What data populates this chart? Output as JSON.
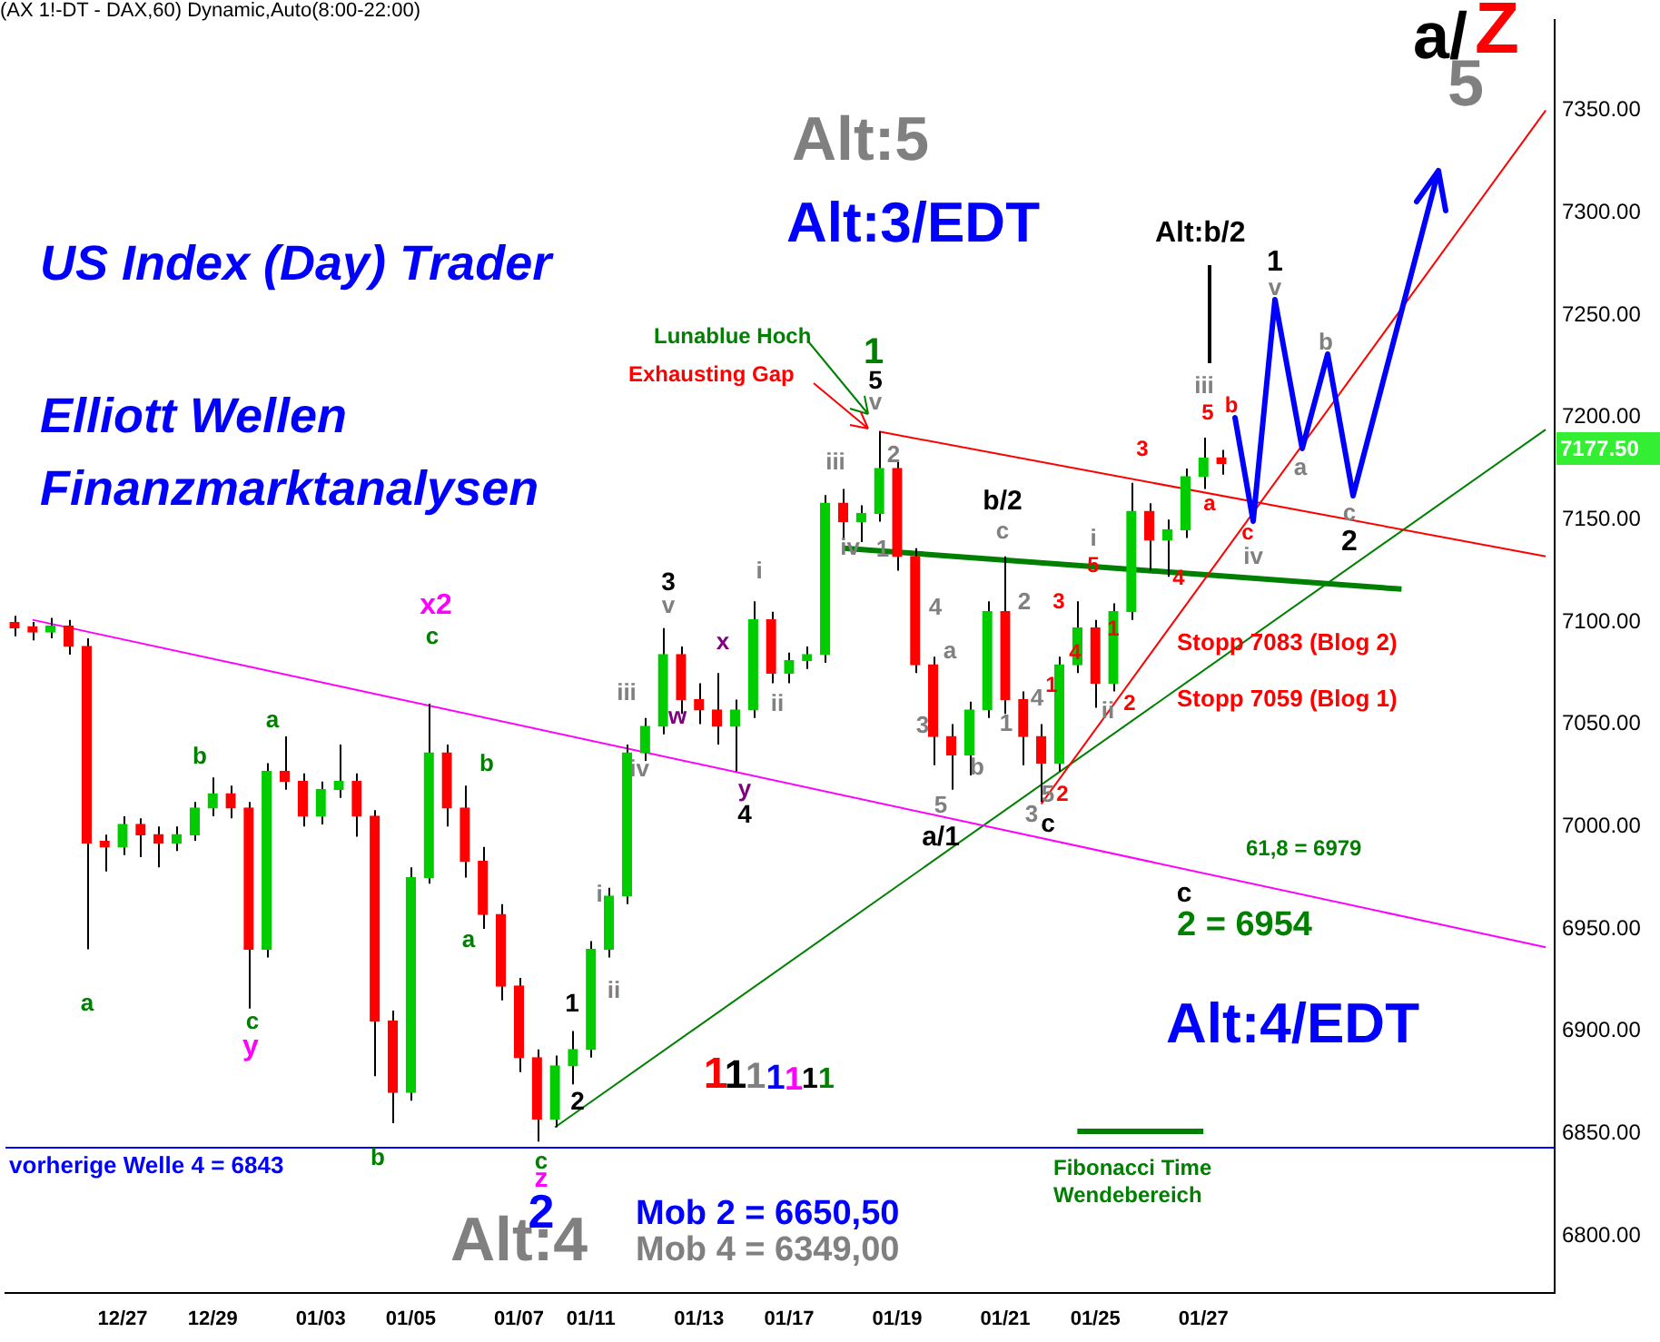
{
  "chart_data": {
    "type": "candlestick",
    "title": "(AX 1!-DT - DAX,60) Dynamic,Auto(8:00-22:00)",
    "categories": [
      null,
      null,
      null,
      null,
      null,
      null,
      "12/27",
      null,
      null,
      null,
      null,
      "12/29",
      null,
      null,
      null,
      null,
      null,
      "01/03",
      null,
      null,
      null,
      null,
      "01/05",
      null,
      null,
      null,
      null,
      null,
      "01/07",
      null,
      null,
      null,
      "01/11",
      null,
      null,
      null,
      null,
      null,
      "01/13",
      null,
      null,
      null,
      null,
      "01/17",
      null,
      null,
      null,
      null,
      null,
      "01/19",
      null,
      null,
      null,
      null,
      null,
      "01/21",
      null,
      null,
      null,
      null,
      "01/25",
      null,
      null,
      null,
      null,
      null,
      "01/27",
      null,
      null,
      null,
      null,
      null,
      null,
      null,
      null,
      null,
      null,
      null,
      null,
      null,
      null,
      null,
      null,
      null,
      null,
      null
    ],
    "ohlc": [
      [
        7099,
        7103,
        7093,
        7097
      ],
      [
        7097,
        7100,
        7091,
        7095
      ],
      [
        7095,
        7102,
        7092,
        7098
      ],
      [
        7098,
        7101,
        7084,
        7088
      ],
      [
        7088,
        7092,
        6940,
        6992
      ],
      [
        6992,
        6996,
        6978,
        6990
      ],
      [
        6990,
        7005,
        6986,
        7001
      ],
      [
        7001,
        7004,
        6985,
        6996
      ],
      [
        6996,
        7000,
        6980,
        6992
      ],
      [
        6992,
        7000,
        6988,
        6996
      ],
      [
        6996,
        7012,
        6993,
        7009
      ],
      [
        7009,
        7024,
        7005,
        7016
      ],
      [
        7016,
        7020,
        7004,
        7009
      ],
      [
        7009,
        7012,
        6911,
        6940
      ],
      [
        6940,
        7031,
        6936,
        7027
      ],
      [
        7027,
        7044,
        7018,
        7022
      ],
      [
        7022,
        7026,
        7000,
        7005
      ],
      [
        7005,
        7022,
        7001,
        7018
      ],
      [
        7018,
        7040,
        7014,
        7022
      ],
      [
        7022,
        7026,
        6995,
        7005
      ],
      [
        7005,
        7008,
        6878,
        6905
      ],
      [
        6905,
        6910,
        6855,
        6870
      ],
      [
        6870,
        6980,
        6866,
        6975
      ],
      [
        6975,
        7060,
        6972,
        7036
      ],
      [
        7036,
        7040,
        7000,
        7009
      ],
      [
        7009,
        7020,
        6975,
        6983
      ],
      [
        6983,
        6990,
        6950,
        6957
      ],
      [
        6957,
        6962,
        6915,
        6922
      ],
      [
        6922,
        6926,
        6880,
        6887
      ],
      [
        6887,
        6891,
        6846,
        6857
      ],
      [
        6857,
        6888,
        6853,
        6883
      ],
      [
        6883,
        6900,
        6874,
        6891
      ],
      [
        6891,
        6944,
        6887,
        6940
      ],
      [
        6940,
        6970,
        6936,
        6966
      ],
      [
        6966,
        7040,
        6962,
        7036
      ],
      [
        7036,
        7053,
        7032,
        7049
      ],
      [
        7049,
        7097,
        7045,
        7084
      ],
      [
        7084,
        7088,
        7055,
        7062
      ],
      [
        7062,
        7070,
        7050,
        7057
      ],
      [
        7057,
        7075,
        7040,
        7049
      ],
      [
        7049,
        7062,
        7027,
        7057
      ],
      [
        7057,
        7110,
        7053,
        7101
      ],
      [
        7101,
        7105,
        7070,
        7075
      ],
      [
        7075,
        7085,
        7070,
        7081
      ],
      [
        7081,
        7088,
        7077,
        7084
      ],
      [
        7084,
        7162,
        7080,
        7158
      ],
      [
        7158,
        7165,
        7140,
        7149
      ],
      [
        7149,
        7157,
        7139,
        7153
      ],
      [
        7153,
        7193,
        7149,
        7175
      ],
      [
        7175,
        7179,
        7125,
        7132
      ],
      [
        7132,
        7136,
        7075,
        7079
      ],
      [
        7079,
        7083,
        7030,
        7044
      ],
      [
        7044,
        7050,
        7018,
        7035
      ],
      [
        7035,
        7061,
        7025,
        7057
      ],
      [
        7057,
        7110,
        7053,
        7105
      ],
      [
        7105,
        7132,
        7055,
        7062
      ],
      [
        7062,
        7066,
        7030,
        7044
      ],
      [
        7044,
        7050,
        7012,
        7031
      ],
      [
        7031,
        7083,
        7027,
        7079
      ],
      [
        7079,
        7110,
        7075,
        7097
      ],
      [
        7097,
        7101,
        7058,
        7070
      ],
      [
        7070,
        7109,
        7066,
        7105
      ],
      [
        7105,
        7168,
        7101,
        7154
      ],
      [
        7154,
        7158,
        7125,
        7140
      ],
      [
        7140,
        7150,
        7122,
        7145
      ],
      [
        7145,
        7175,
        7141,
        7171
      ],
      [
        7171,
        7190,
        7165,
        7180
      ],
      [
        7180,
        7184,
        7172,
        7177.5
      ],
      null,
      null,
      null,
      null,
      null,
      null,
      null,
      null,
      null,
      null,
      null,
      null,
      null,
      null,
      null,
      null,
      null,
      null
    ],
    "colors": [
      "#ff0000",
      "#ff0000",
      "#00cc00",
      "#ff0000",
      "#ff0000",
      "#ff0000",
      "#00cc00",
      "#ff0000",
      "#ff0000",
      "#00cc00",
      "#00cc00",
      "#00cc00",
      "#ff0000",
      "#ff0000",
      "#00cc00",
      "#ff0000",
      "#ff0000",
      "#00cc00",
      "#00cc00",
      "#ff0000",
      "#ff0000",
      "#ff0000",
      "#00cc00",
      "#00cc00",
      "#ff0000",
      "#ff0000",
      "#ff0000",
      "#ff0000",
      "#ff0000",
      "#ff0000",
      "#00cc00",
      "#00cc00",
      "#00cc00",
      "#00cc00",
      "#00cc00",
      "#00cc00",
      "#00cc00",
      "#ff0000",
      "#ff0000",
      "#ff0000",
      "#00cc00",
      "#00cc00",
      "#ff0000",
      "#00cc00",
      "#00cc00",
      "#00cc00",
      "#ff0000",
      "#00cc00",
      "#00cc00",
      "#ff0000",
      "#ff0000",
      "#ff0000",
      "#ff0000",
      "#00cc00",
      "#00cc00",
      "#ff0000",
      "#ff0000",
      "#ff0000",
      "#00cc00",
      "#00cc00",
      "#ff0000",
      "#00cc00",
      "#00cc00",
      "#ff0000",
      "#00cc00",
      "#00cc00",
      "#00cc00",
      "#ff0000",
      null,
      null,
      null,
      null,
      null,
      null,
      null,
      null,
      null,
      null,
      null,
      null,
      null,
      null,
      null,
      null,
      null,
      null
    ],
    "series": [
      {
        "type": "line",
        "color": "#ff00ff",
        "values": [
          null,
          7101,
          null,
          null,
          null,
          null,
          null,
          null,
          null,
          null,
          null,
          null,
          null,
          null,
          null,
          null,
          null,
          null,
          null,
          null,
          null,
          null,
          null,
          null,
          null,
          null,
          null,
          null,
          null,
          null,
          null,
          null,
          null,
          null,
          null,
          null,
          null,
          null,
          null,
          null,
          null,
          null,
          null,
          null,
          null,
          null,
          null,
          null,
          null,
          null,
          null,
          null,
          null,
          null,
          null,
          null,
          null,
          null,
          null,
          null,
          null,
          null,
          null,
          null,
          null,
          null,
          null,
          null,
          null,
          null,
          null,
          null,
          null,
          null,
          null,
          null,
          null,
          null,
          null,
          null,
          null,
          null,
          null,
          null,
          null,
          6941
        ]
      },
      {
        "type": "line",
        "color": "#ff0000",
        "values": [
          null,
          null,
          null,
          null,
          null,
          null,
          null,
          null,
          null,
          null,
          null,
          null,
          null,
          null,
          null,
          null,
          null,
          null,
          null,
          null,
          null,
          null,
          null,
          null,
          null,
          null,
          null,
          null,
          null,
          null,
          null,
          null,
          null,
          null,
          null,
          null,
          null,
          null,
          null,
          null,
          null,
          null,
          null,
          null,
          null,
          null,
          null,
          null,
          7193,
          null,
          null,
          null,
          null,
          null,
          null,
          null,
          null,
          null,
          null,
          null,
          null,
          null,
          null,
          null,
          null,
          null,
          null,
          null,
          null,
          null,
          null,
          null,
          null,
          null,
          null,
          null,
          null,
          null,
          null,
          null,
          null,
          null,
          null,
          null,
          null,
          7132
        ]
      },
      {
        "type": "line",
        "color": "#ff0000",
        "values": [
          null,
          null,
          null,
          null,
          null,
          null,
          null,
          null,
          null,
          null,
          null,
          null,
          null,
          null,
          null,
          null,
          null,
          null,
          null,
          null,
          null,
          null,
          null,
          null,
          null,
          null,
          null,
          null,
          null,
          null,
          null,
          null,
          null,
          null,
          null,
          null,
          null,
          null,
          null,
          null,
          null,
          null,
          null,
          null,
          null,
          null,
          null,
          null,
          null,
          null,
          null,
          null,
          null,
          null,
          null,
          null,
          null,
          7011,
          null,
          null,
          null,
          null,
          null,
          null,
          null,
          null,
          null,
          null,
          null,
          null,
          null,
          null,
          null,
          null,
          null,
          null,
          null,
          null,
          null,
          null,
          null,
          null,
          null,
          null,
          null,
          7350
        ]
      },
      {
        "type": "line",
        "color": "#008000",
        "values": [
          null,
          null,
          null,
          null,
          null,
          null,
          null,
          null,
          null,
          null,
          null,
          null,
          null,
          null,
          null,
          null,
          null,
          null,
          null,
          null,
          null,
          null,
          null,
          null,
          null,
          null,
          null,
          null,
          null,
          null,
          6853,
          null,
          null,
          null,
          null,
          null,
          null,
          null,
          null,
          null,
          null,
          null,
          null,
          null,
          null,
          null,
          null,
          null,
          null,
          null,
          null,
          null,
          null,
          null,
          null,
          null,
          null,
          null,
          null,
          null,
          null,
          null,
          null,
          null,
          null,
          null,
          null,
          null,
          null,
          null,
          null,
          null,
          null,
          null,
          null,
          null,
          null,
          null,
          null,
          null,
          null,
          null,
          null,
          null,
          null,
          7194
        ]
      },
      {
        "type": "line",
        "color": "#008000",
        "values": [
          null,
          null,
          null,
          null,
          null,
          null,
          null,
          null,
          null,
          null,
          null,
          null,
          null,
          null,
          null,
          null,
          null,
          null,
          null,
          null,
          null,
          null,
          null,
          null,
          null,
          null,
          null,
          null,
          null,
          null,
          null,
          null,
          null,
          null,
          null,
          null,
          null,
          null,
          null,
          null,
          null,
          null,
          null,
          null,
          null,
          null,
          7136,
          null,
          null,
          null,
          null,
          null,
          null,
          null,
          null,
          null,
          null,
          null,
          null,
          null,
          null,
          null,
          null,
          null,
          null,
          null,
          null,
          null,
          null,
          null,
          null,
          null,
          null,
          null,
          null,
          null,
          null,
          7116,
          null,
          null,
          null,
          null,
          null,
          null,
          null,
          null
        ]
      },
      {
        "type": "line",
        "color": "#008000",
        "values": [
          null,
          null,
          null,
          null,
          null,
          null,
          null,
          null,
          null,
          null,
          null,
          null,
          null,
          null,
          null,
          null,
          null,
          null,
          null,
          null,
          null,
          null,
          null,
          null,
          null,
          null,
          null,
          null,
          null,
          null,
          null,
          null,
          null,
          null,
          null,
          null,
          null,
          null,
          null,
          null,
          null,
          null,
          null,
          null,
          null,
          null,
          null,
          null,
          null,
          null,
          null,
          null,
          null,
          null,
          null,
          null,
          null,
          null,
          null,
          6851,
          null,
          null,
          null,
          null,
          null,
          null,
          6851,
          null,
          null,
          null,
          null,
          null,
          null,
          null,
          null,
          null,
          null,
          null,
          null,
          null,
          null,
          null,
          null,
          null,
          null,
          null
        ]
      }
    ],
    "ref_lines": [
      {
        "axis": "y",
        "value": 6843,
        "label": "vorherige Welle 4 = 6843",
        "color": "#0000ff"
      }
    ],
    "ylim": [
      6772,
      7394
    ],
    "yticks": [
      {
        "value": 6800,
        "label": "6800.00"
      },
      {
        "value": 6850,
        "label": "6850.00"
      },
      {
        "value": 6900,
        "label": "6900.00"
      },
      {
        "value": 6950,
        "label": "6950.00"
      },
      {
        "value": 7000,
        "label": "7000.00"
      },
      {
        "value": 7050,
        "label": "7050.00"
      },
      {
        "value": 7100,
        "label": "7100.00"
      },
      {
        "value": 7150,
        "label": "7150.00"
      },
      {
        "value": 7200,
        "label": "7200.00"
      },
      {
        "value": 7250,
        "label": "7250.00"
      },
      {
        "value": 7300,
        "label": "7300.00"
      },
      {
        "value": 7350,
        "label": "7350.00"
      }
    ],
    "annotations": [
      "US Index (Day) Trader",
      "Elliott Wellen",
      "Finanzmarktanalysen",
      "Alt:5",
      "Alt:3/EDT",
      "a/",
      "Z",
      "5",
      "Alt:b/2",
      "Lunablue Hoch",
      "Exhausting Gap",
      "Stopp 7083 (Blog 2)",
      "Stopp 7059 (Blog 1)",
      "61,8 = 6979",
      "c",
      "2 = 6954",
      "Alt:4/EDT",
      "1",
      "1",
      "1",
      "1",
      "1",
      "1",
      "1",
      "Fibonacci Time",
      "Wendebereich",
      "Alt:4",
      "Mob 2 = 6650,50",
      "Mob 4 = 6349,00",
      "c",
      "z",
      "2",
      "7177.50",
      "a",
      "b",
      "a",
      "c",
      "y",
      "b",
      "x2",
      "c",
      "b",
      "a",
      "1",
      "2",
      "i",
      "ii",
      "iii",
      "iv",
      "v",
      "3",
      "w",
      "x",
      "y",
      "4",
      "i",
      "ii",
      "iii",
      "iv",
      "1",
      "5",
      "v",
      "1",
      "2",
      "4",
      "a",
      "3",
      "5",
      "a/1",
      "b",
      "b/2",
      "c",
      "1",
      "2",
      "4",
      "3",
      "5",
      "c",
      "1",
      "2",
      "3",
      "4",
      "5",
      "i",
      "1",
      "2",
      "ii",
      "3",
      "4",
      "5",
      "iii",
      "a",
      "b",
      "c",
      "iv",
      "1",
      "v",
      "a",
      "b",
      "c",
      "2"
    ]
  }
}
